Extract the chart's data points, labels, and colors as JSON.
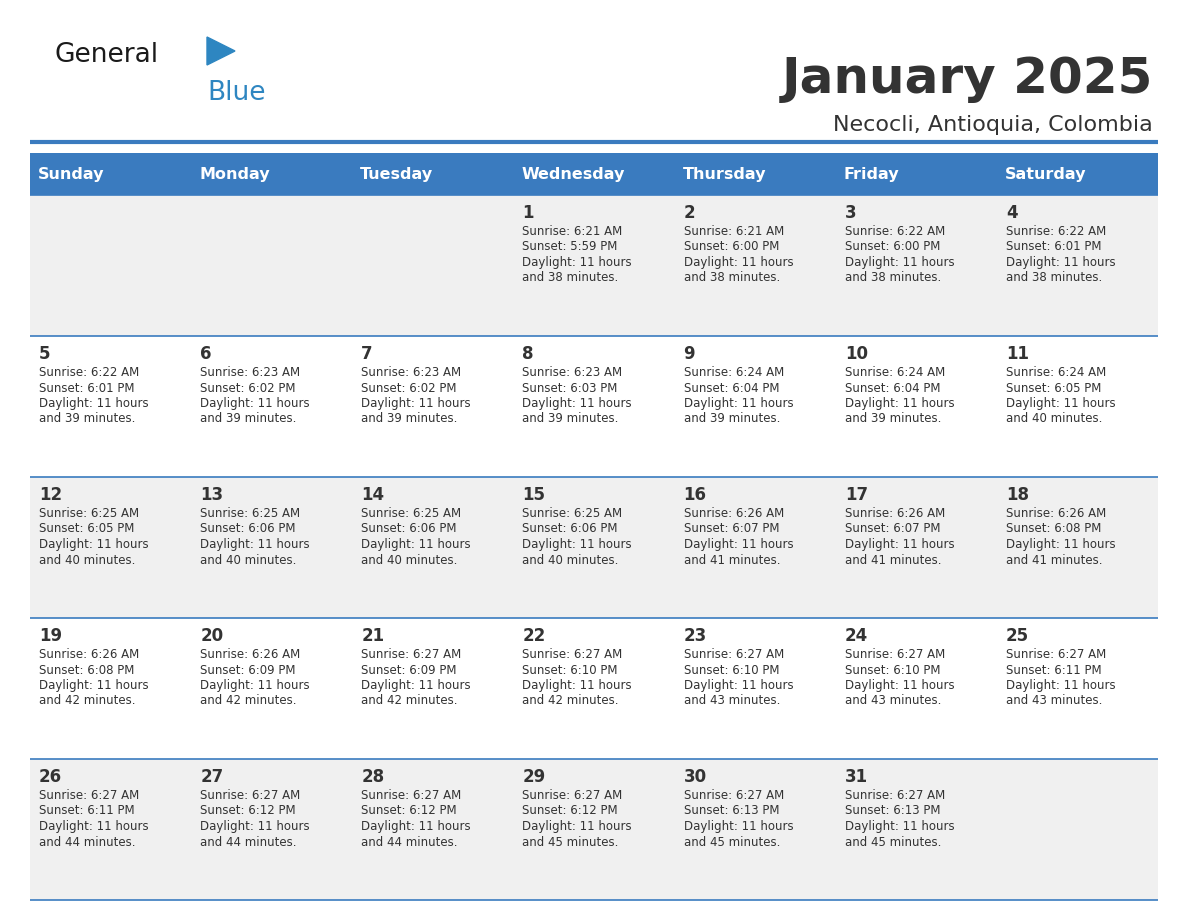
{
  "title": "January 2025",
  "subtitle": "Necocli, Antioquia, Colombia",
  "header_bg_color": "#3a7bbf",
  "header_text_color": "#ffffff",
  "row_bg_even": "#f0f0f0",
  "row_bg_odd": "#ffffff",
  "separator_color": "#3a7bbf",
  "text_color": "#333333",
  "days_of_week": [
    "Sunday",
    "Monday",
    "Tuesday",
    "Wednesday",
    "Thursday",
    "Friday",
    "Saturday"
  ],
  "calendar": [
    [
      {
        "day": "",
        "sunrise": "",
        "sunset": "",
        "daylight": ""
      },
      {
        "day": "",
        "sunrise": "",
        "sunset": "",
        "daylight": ""
      },
      {
        "day": "",
        "sunrise": "",
        "sunset": "",
        "daylight": ""
      },
      {
        "day": "1",
        "sunrise": "6:21 AM",
        "sunset": "5:59 PM",
        "daylight": "11 hours and 38 minutes."
      },
      {
        "day": "2",
        "sunrise": "6:21 AM",
        "sunset": "6:00 PM",
        "daylight": "11 hours and 38 minutes."
      },
      {
        "day": "3",
        "sunrise": "6:22 AM",
        "sunset": "6:00 PM",
        "daylight": "11 hours and 38 minutes."
      },
      {
        "day": "4",
        "sunrise": "6:22 AM",
        "sunset": "6:01 PM",
        "daylight": "11 hours and 38 minutes."
      }
    ],
    [
      {
        "day": "5",
        "sunrise": "6:22 AM",
        "sunset": "6:01 PM",
        "daylight": "11 hours and 39 minutes."
      },
      {
        "day": "6",
        "sunrise": "6:23 AM",
        "sunset": "6:02 PM",
        "daylight": "11 hours and 39 minutes."
      },
      {
        "day": "7",
        "sunrise": "6:23 AM",
        "sunset": "6:02 PM",
        "daylight": "11 hours and 39 minutes."
      },
      {
        "day": "8",
        "sunrise": "6:23 AM",
        "sunset": "6:03 PM",
        "daylight": "11 hours and 39 minutes."
      },
      {
        "day": "9",
        "sunrise": "6:24 AM",
        "sunset": "6:04 PM",
        "daylight": "11 hours and 39 minutes."
      },
      {
        "day": "10",
        "sunrise": "6:24 AM",
        "sunset": "6:04 PM",
        "daylight": "11 hours and 39 minutes."
      },
      {
        "day": "11",
        "sunrise": "6:24 AM",
        "sunset": "6:05 PM",
        "daylight": "11 hours and 40 minutes."
      }
    ],
    [
      {
        "day": "12",
        "sunrise": "6:25 AM",
        "sunset": "6:05 PM",
        "daylight": "11 hours and 40 minutes."
      },
      {
        "day": "13",
        "sunrise": "6:25 AM",
        "sunset": "6:06 PM",
        "daylight": "11 hours and 40 minutes."
      },
      {
        "day": "14",
        "sunrise": "6:25 AM",
        "sunset": "6:06 PM",
        "daylight": "11 hours and 40 minutes."
      },
      {
        "day": "15",
        "sunrise": "6:25 AM",
        "sunset": "6:06 PM",
        "daylight": "11 hours and 40 minutes."
      },
      {
        "day": "16",
        "sunrise": "6:26 AM",
        "sunset": "6:07 PM",
        "daylight": "11 hours and 41 minutes."
      },
      {
        "day": "17",
        "sunrise": "6:26 AM",
        "sunset": "6:07 PM",
        "daylight": "11 hours and 41 minutes."
      },
      {
        "day": "18",
        "sunrise": "6:26 AM",
        "sunset": "6:08 PM",
        "daylight": "11 hours and 41 minutes."
      }
    ],
    [
      {
        "day": "19",
        "sunrise": "6:26 AM",
        "sunset": "6:08 PM",
        "daylight": "11 hours and 42 minutes."
      },
      {
        "day": "20",
        "sunrise": "6:26 AM",
        "sunset": "6:09 PM",
        "daylight": "11 hours and 42 minutes."
      },
      {
        "day": "21",
        "sunrise": "6:27 AM",
        "sunset": "6:09 PM",
        "daylight": "11 hours and 42 minutes."
      },
      {
        "day": "22",
        "sunrise": "6:27 AM",
        "sunset": "6:10 PM",
        "daylight": "11 hours and 42 minutes."
      },
      {
        "day": "23",
        "sunrise": "6:27 AM",
        "sunset": "6:10 PM",
        "daylight": "11 hours and 43 minutes."
      },
      {
        "day": "24",
        "sunrise": "6:27 AM",
        "sunset": "6:10 PM",
        "daylight": "11 hours and 43 minutes."
      },
      {
        "day": "25",
        "sunrise": "6:27 AM",
        "sunset": "6:11 PM",
        "daylight": "11 hours and 43 minutes."
      }
    ],
    [
      {
        "day": "26",
        "sunrise": "6:27 AM",
        "sunset": "6:11 PM",
        "daylight": "11 hours and 44 minutes."
      },
      {
        "day": "27",
        "sunrise": "6:27 AM",
        "sunset": "6:12 PM",
        "daylight": "11 hours and 44 minutes."
      },
      {
        "day": "28",
        "sunrise": "6:27 AM",
        "sunset": "6:12 PM",
        "daylight": "11 hours and 44 minutes."
      },
      {
        "day": "29",
        "sunrise": "6:27 AM",
        "sunset": "6:12 PM",
        "daylight": "11 hours and 45 minutes."
      },
      {
        "day": "30",
        "sunrise": "6:27 AM",
        "sunset": "6:13 PM",
        "daylight": "11 hours and 45 minutes."
      },
      {
        "day": "31",
        "sunrise": "6:27 AM",
        "sunset": "6:13 PM",
        "daylight": "11 hours and 45 minutes."
      },
      {
        "day": "",
        "sunrise": "",
        "sunset": "",
        "daylight": ""
      }
    ]
  ],
  "logo_color_general": "#1a1a1a",
  "logo_color_blue": "#2e86c1",
  "logo_triangle_color": "#2e86c1",
  "fig_width": 11.88,
  "fig_height": 9.18,
  "dpi": 100
}
